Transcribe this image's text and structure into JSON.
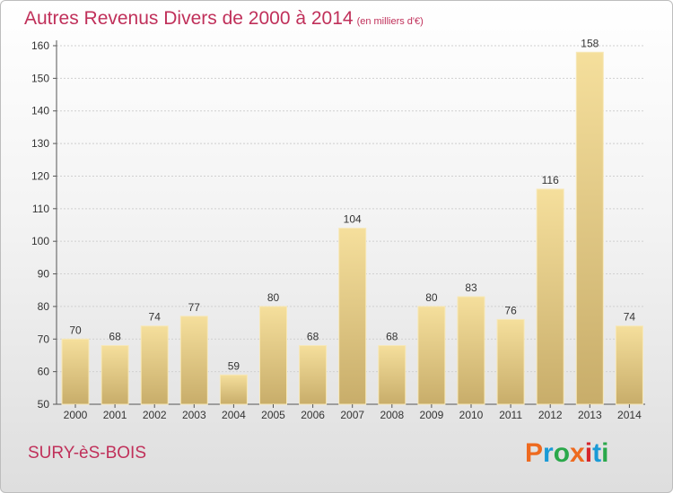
{
  "header": {
    "title": "Autres Revenus Divers de 2000 à 2014",
    "unit": "(en milliers d'€)"
  },
  "footer": {
    "commune": "SURY-èS-BOIS",
    "logo_text": "Proxiti"
  },
  "colors": {
    "title": "#c0305a",
    "bar_light": "#f5df9c",
    "bar_dark": "#c8ad6a",
    "grid": "#d0d0d0",
    "logo": [
      "#ee6a1f",
      "#1a9ad6",
      "#2aa84a",
      "#ee6a1f",
      "#d6242b",
      "#1a9ad6",
      "#2aa84a"
    ]
  },
  "chart_data": {
    "type": "bar",
    "title": "Autres Revenus Divers de 2000 à 2014",
    "subtitle": "(en milliers d'€)",
    "categories": [
      "2000",
      "2001",
      "2002",
      "2003",
      "2004",
      "2005",
      "2006",
      "2007",
      "2008",
      "2009",
      "2010",
      "2011",
      "2012",
      "2013",
      "2014"
    ],
    "values": [
      70,
      68,
      74,
      77,
      59,
      80,
      68,
      104,
      68,
      80,
      83,
      76,
      116,
      158,
      74
    ],
    "ylim": [
      50,
      160
    ],
    "yticks": [
      50,
      60,
      70,
      80,
      90,
      100,
      110,
      120,
      130,
      140,
      150,
      160
    ],
    "grid": true,
    "data_labels": true
  }
}
